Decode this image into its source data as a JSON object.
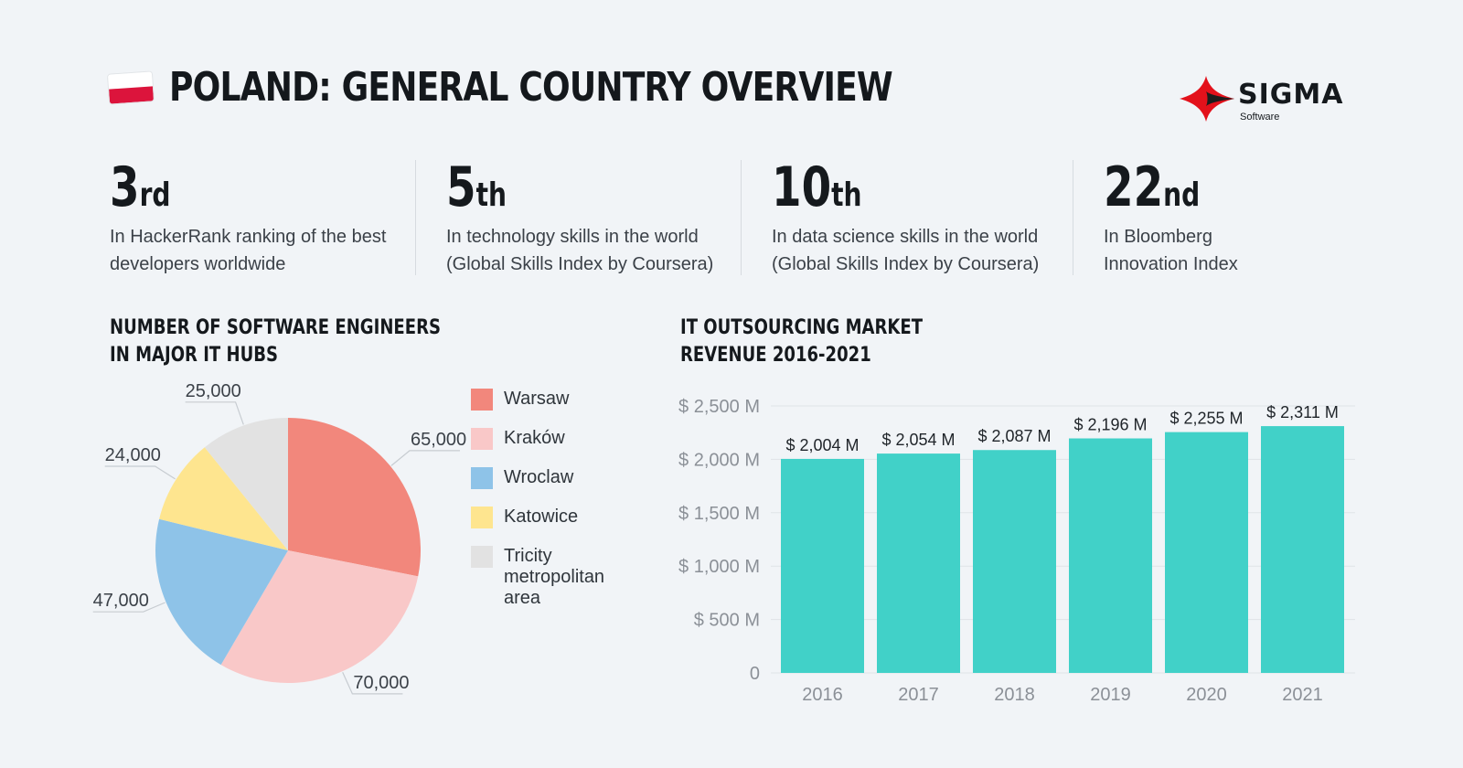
{
  "header": {
    "title": "POLAND: GENERAL COUNTRY OVERVIEW",
    "flag_colors": [
      "#ffffff",
      "#dc143c"
    ],
    "logo": {
      "name": "SIGMA",
      "sub": "Software",
      "icon": "sigma-diamond-icon",
      "colors": [
        "#e3111b",
        "#1d1d1d"
      ]
    }
  },
  "stats": [
    {
      "number": "3",
      "suffix": "rd",
      "line1": "In HackerRank ranking of the best",
      "line2": "developers worldwide"
    },
    {
      "number": "5",
      "suffix": "th",
      "line1": "In technology skills in the world",
      "line2": "(Global Skills Index by Coursera)"
    },
    {
      "number": "10",
      "suffix": "th",
      "line1": "In data science skills in the world",
      "line2": "(Global Skills Index by Coursera)"
    },
    {
      "number": "22",
      "suffix": "nd",
      "line1": "In Bloomberg",
      "line2": "Innovation Index"
    }
  ],
  "pie_section": {
    "title_line1": "NUMBER OF SOFTWARE ENGINEERS",
    "title_line2": "IN MAJOR IT HUBS"
  },
  "bar_section": {
    "title_line1": "IT OUTSOURCING MARKET",
    "title_line2": "REVENUE 2016-2021"
  },
  "legend": [
    {
      "label": "Warsaw",
      "color": "#f2877c"
    },
    {
      "label": "Kraków",
      "color": "#f9c8c8"
    },
    {
      "label": "Wroclaw",
      "color": "#8ec3e8"
    },
    {
      "label": "Katowice",
      "color": "#fee58f"
    },
    {
      "label": "Tricity metropolitan area",
      "color": "#e2e2e2"
    }
  ],
  "chart_data": [
    {
      "type": "pie",
      "title": "NUMBER OF SOFTWARE ENGINEERS IN MAJOR IT HUBS",
      "categories": [
        "Warsaw",
        "Kraków",
        "Wroclaw",
        "Katowice",
        "Tricity metropolitan area"
      ],
      "values": [
        65000,
        70000,
        47000,
        24000,
        25000
      ],
      "value_labels": [
        "65,000",
        "70,000",
        "47,000",
        "24,000",
        "25,000"
      ],
      "colors": [
        "#f2877c",
        "#f9c8c8",
        "#8ec3e8",
        "#fee58f",
        "#e2e2e2"
      ],
      "legend": "right"
    },
    {
      "type": "bar",
      "title": "IT OUTSOURCING MARKET REVENUE 2016-2021",
      "categories": [
        "2016",
        "2017",
        "2018",
        "2019",
        "2020",
        "2021"
      ],
      "values": [
        2004,
        2054,
        2087,
        2196,
        2255,
        2311
      ],
      "value_labels": [
        "$ 2,004 M",
        "$ 2,054 M",
        "$ 2,087 M",
        "$ 2,196 M",
        "$ 2,255 M",
        "$ 2,311 M"
      ],
      "ylim": [
        0,
        2500
      ],
      "yticks": [
        0,
        500,
        1000,
        1500,
        2000,
        2500
      ],
      "ytick_labels": [
        "0",
        "$ 500 M",
        "$ 1,000 M",
        "$ 1,500 M",
        "$ 2,000 M",
        "$ 2,500 M"
      ],
      "color": "#41d1c8",
      "grid": true
    }
  ]
}
